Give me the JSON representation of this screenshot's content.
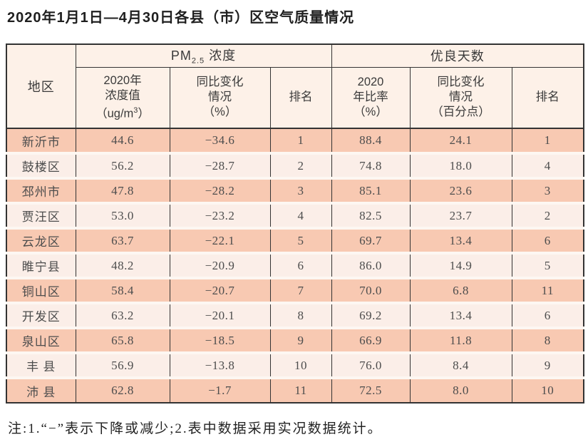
{
  "title": "2020年1月1日—4月30日各县（市）区空气质量情况",
  "colors": {
    "row_odd_bg": "#f8c9b2",
    "row_even_bg": "#fbeee8",
    "row_gap": "#fdf7f2",
    "header_bg": "#fdf1e8",
    "border_dark": "#333333",
    "text_dark": "#1f1f1f",
    "text_body": "#4d4d4d"
  },
  "table": {
    "region_header": "地区",
    "pm25_group": {
      "prefix": "PM",
      "sub": "2.5",
      "suffix": " 浓度"
    },
    "good_days_group": "优良天数",
    "sub_headers": {
      "pm25_value": {
        "line1": "2020年",
        "line2": "浓度值",
        "unit_prefix": "（ug/m",
        "unit_sup": "3",
        "unit_suffix": "）"
      },
      "pm25_change": {
        "line1": "同比变化",
        "line2": "情况",
        "line3": "（%）"
      },
      "pm25_rank": "排名",
      "good_ratio": {
        "line1": "2020",
        "line2": "年比率",
        "line3": "（%）"
      },
      "good_change": {
        "line1": "同比变化",
        "line2": "情况",
        "line3": "（百分点）"
      },
      "good_rank": "排名"
    },
    "rows": [
      {
        "region": "新沂市",
        "pm25_value": "44.6",
        "pm25_change": "−34.6",
        "pm25_rank": "1",
        "good_ratio": "88.4",
        "good_change": "24.1",
        "good_rank": "1"
      },
      {
        "region": "鼓楼区",
        "pm25_value": "56.2",
        "pm25_change": "−28.7",
        "pm25_rank": "2",
        "good_ratio": "74.8",
        "good_change": "18.0",
        "good_rank": "4"
      },
      {
        "region": "邳州市",
        "pm25_value": "47.8",
        "pm25_change": "−28.2",
        "pm25_rank": "3",
        "good_ratio": "85.1",
        "good_change": "23.6",
        "good_rank": "3"
      },
      {
        "region": "贾汪区",
        "pm25_value": "53.0",
        "pm25_change": "−23.2",
        "pm25_rank": "4",
        "good_ratio": "82.5",
        "good_change": "23.7",
        "good_rank": "2"
      },
      {
        "region": "云龙区",
        "pm25_value": "63.7",
        "pm25_change": "−22.1",
        "pm25_rank": "5",
        "good_ratio": "69.7",
        "good_change": "13.4",
        "good_rank": "6"
      },
      {
        "region": "睢宁县",
        "pm25_value": "48.2",
        "pm25_change": "−20.9",
        "pm25_rank": "6",
        "good_ratio": "86.0",
        "good_change": "14.9",
        "good_rank": "5"
      },
      {
        "region": "铜山区",
        "pm25_value": "58.4",
        "pm25_change": "−20.7",
        "pm25_rank": "7",
        "good_ratio": "70.0",
        "good_change": "6.8",
        "good_rank": "11"
      },
      {
        "region": "开发区",
        "pm25_value": "63.2",
        "pm25_change": "−20.1",
        "pm25_rank": "8",
        "good_ratio": "69.2",
        "good_change": "13.4",
        "good_rank": "6"
      },
      {
        "region": "泉山区",
        "pm25_value": "65.8",
        "pm25_change": "−18.5",
        "pm25_rank": "9",
        "good_ratio": "66.9",
        "good_change": "11.8",
        "good_rank": "8"
      },
      {
        "region": "丰 县",
        "pm25_value": "56.9",
        "pm25_change": "−13.8",
        "pm25_rank": "10",
        "good_ratio": "76.0",
        "good_change": "8.4",
        "good_rank": "9"
      },
      {
        "region": "沛 县",
        "pm25_value": "62.8",
        "pm25_change": "−1.7",
        "pm25_rank": "11",
        "good_ratio": "72.5",
        "good_change": "8.0",
        "good_rank": "10"
      }
    ]
  },
  "note": "注:1.“−”表示下降或减少;2.表中数据采用实况数据统计。"
}
